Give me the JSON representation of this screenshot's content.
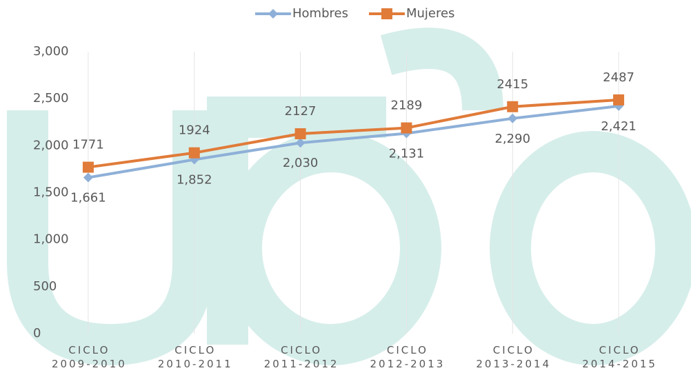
{
  "chart_data": {
    "type": "line",
    "categories": [
      "CICLO 2009-2010",
      "CICLO 2010-2011",
      "CICLO 2011-2012",
      "CICLO 2012-2013",
      "CICLO 2013-2014",
      "CICLO 2014-2015"
    ],
    "series": [
      {
        "name": "Hombres",
        "color": "#8eb0d8",
        "marker": "diamond",
        "values": [
          1661,
          1852,
          2030,
          2131,
          2290,
          2421
        ],
        "value_labels": [
          "1,661",
          "1,852",
          "2,030",
          "2,131",
          "2,290",
          "2,421"
        ]
      },
      {
        "name": "Mujeres",
        "color": "#e07b39",
        "marker": "square",
        "values": [
          1771,
          1924,
          2127,
          2189,
          2415,
          2487
        ]
      }
    ],
    "ylim": [
      0,
      3000
    ],
    "yticks": [
      0,
      500,
      {
        "value": 1000,
        "label": "1,000"
      },
      {
        "value": 1500,
        "label": "1,500"
      },
      {
        "value": 2000,
        "label": "2,000"
      },
      {
        "value": 2500,
        "label": "2,500"
      },
      {
        "value": 3000,
        "label": "3,000"
      }
    ],
    "grid": "x",
    "legend": "top"
  }
}
